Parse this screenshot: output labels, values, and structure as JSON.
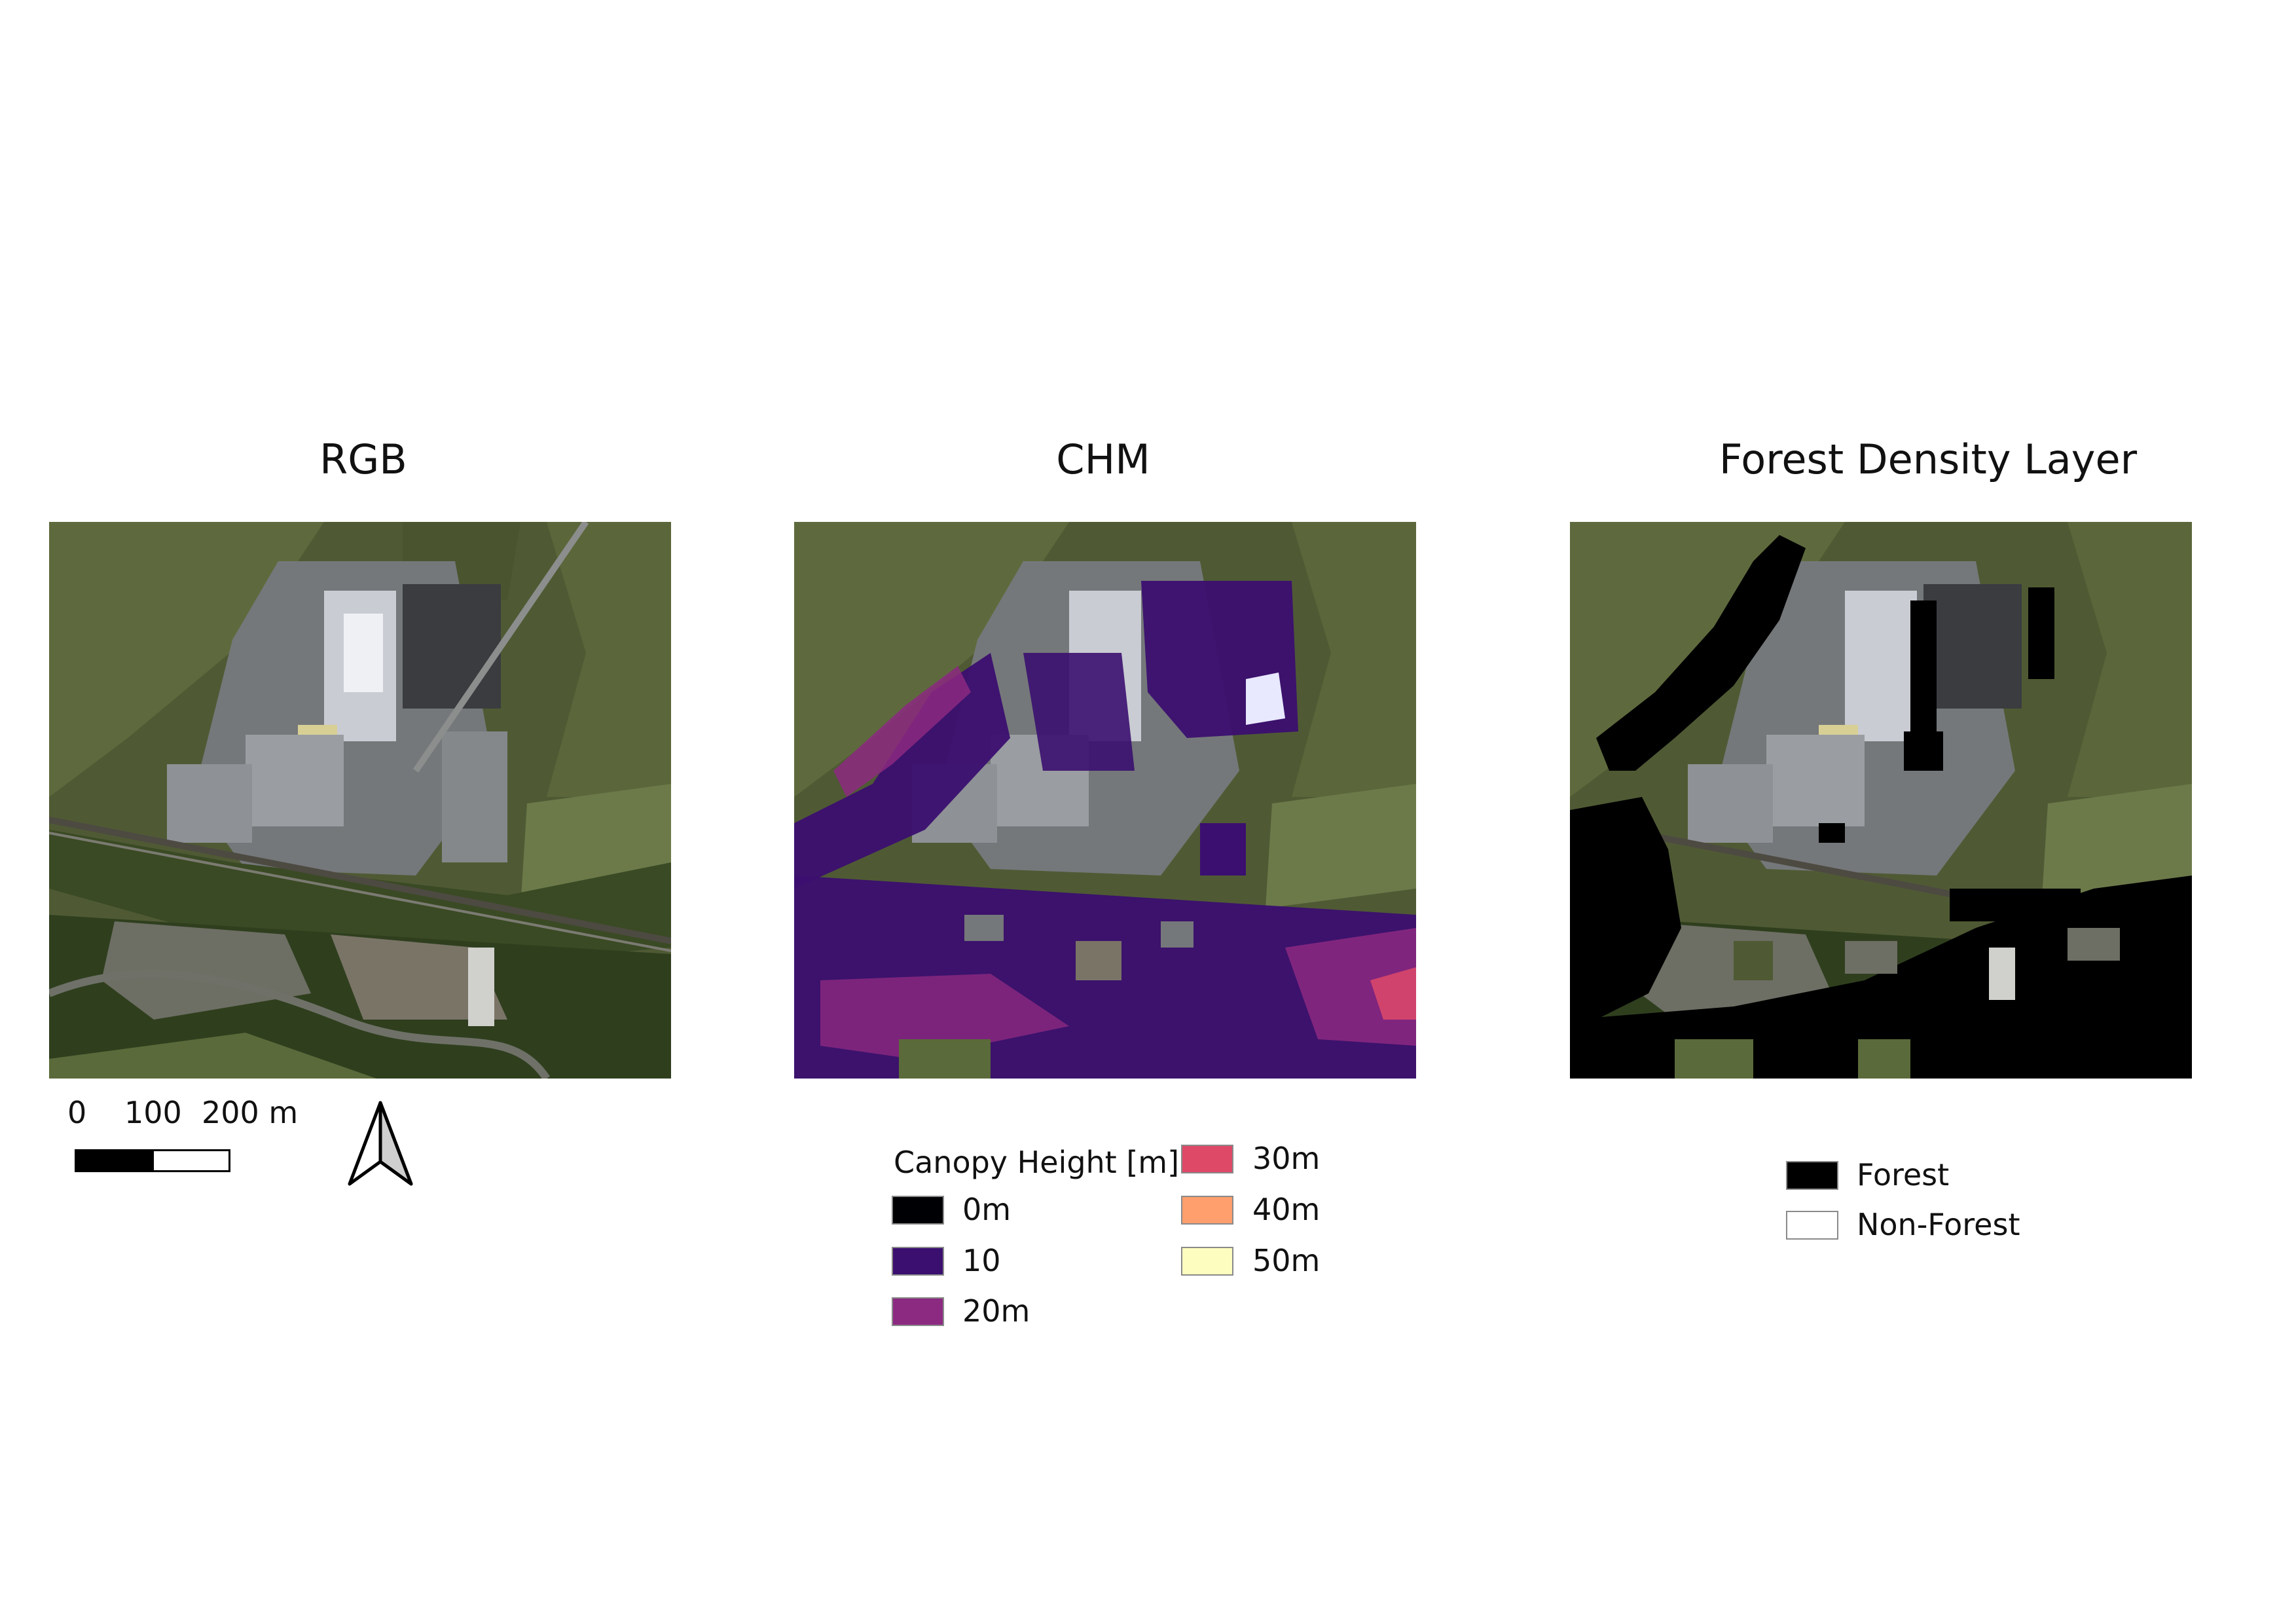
{
  "panels": {
    "rgb_title": "RGB",
    "chm_title": "CHM",
    "fdl_title": "Forest Density Layer"
  },
  "scalebar": {
    "label_0": "0",
    "label_100": "100",
    "label_200": "200 m"
  },
  "north_arrow": {
    "icon": "north-arrow-icon"
  },
  "chm_legend": {
    "title": "Canopy Height [m]",
    "items": [
      {
        "label": "0m",
        "color": "#000004"
      },
      {
        "label": "10",
        "color": "#3b0f70"
      },
      {
        "label": "20m",
        "color": "#8c2981"
      },
      {
        "label": "30m",
        "color": "#de4968"
      },
      {
        "label": "40m",
        "color": "#fe9f6d"
      },
      {
        "label": "50m",
        "color": "#fcfdbf"
      }
    ]
  },
  "forest_legend": {
    "items": [
      {
        "label": "Forest",
        "color": "#000000"
      },
      {
        "label": "Non-Forest",
        "color": "#ffffff"
      }
    ]
  }
}
